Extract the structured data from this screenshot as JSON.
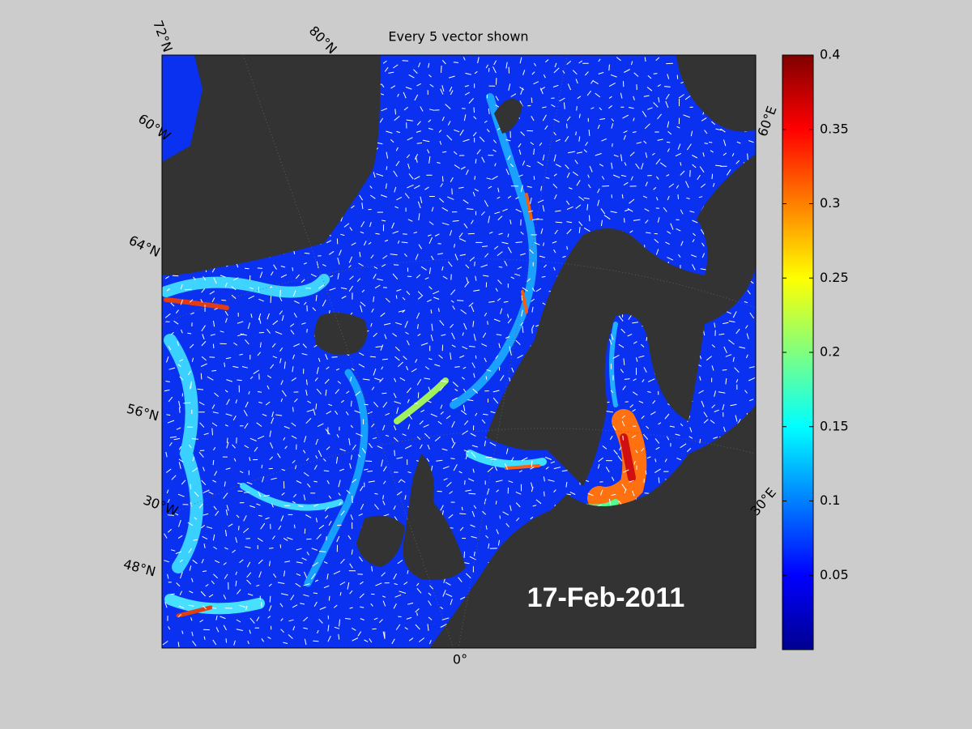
{
  "title": "Every 5 vector shown",
  "date": "17-Feb-2011",
  "graticule_labels": [
    "72°N",
    "80°N",
    "60°W",
    "64°N",
    "56°N",
    "30°W",
    "48°N",
    "0°",
    "30°E",
    "60°E"
  ],
  "colorbar": {
    "ylim": [
      0,
      0.4
    ],
    "yticks": [
      0.05,
      0.1,
      0.15,
      0.2,
      0.25,
      0.3,
      0.35,
      0.4
    ]
  }
}
